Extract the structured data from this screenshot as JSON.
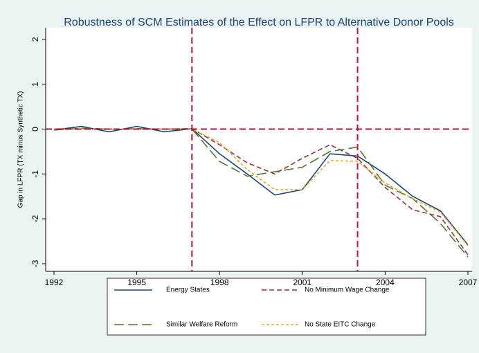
{
  "chart_data": {
    "type": "line",
    "title": "Robustness of SCM Estimates of the Effect on LFPR to Alternative Donor Pools",
    "y_label": "Gap in LFPR (TX minus Synthetic TX)",
    "x": [
      1992,
      1993,
      1994,
      1995,
      1996,
      1997,
      1998,
      1999,
      2000,
      2001,
      2002,
      2003,
      2004,
      2005,
      2006,
      2007
    ],
    "series": [
      {
        "name": "Energy States",
        "color": "#1a476f",
        "dash": "solid",
        "values": [
          -0.02,
          0.06,
          -0.06,
          0.06,
          -0.06,
          0.01,
          -0.55,
          -1.0,
          -1.47,
          -1.35,
          -0.55,
          -0.6,
          -1.0,
          -1.5,
          -1.82,
          -2.58
        ]
      },
      {
        "name": "No Minimum Wage Change",
        "color": "#90353b",
        "dash": "dashed",
        "values": [
          0,
          0,
          0,
          0,
          0,
          0.01,
          -0.35,
          -0.75,
          -1.0,
          -0.65,
          -0.35,
          -0.65,
          -1.3,
          -1.8,
          -1.95,
          -2.8
        ]
      },
      {
        "name": "Similar Welfare Reform",
        "color": "#55752f",
        "dash": "longdash",
        "values": [
          -0.02,
          0.02,
          0,
          0.01,
          0,
          0,
          -0.72,
          -1.05,
          -0.95,
          -0.85,
          -0.5,
          -0.4,
          -1.25,
          -1.55,
          -2.1,
          -2.85
        ]
      },
      {
        "name": "No State EITC Change",
        "color": "#e8a530",
        "dash": "shortdash",
        "values": [
          0,
          0,
          0,
          0,
          0,
          0,
          -0.3,
          -0.9,
          -1.35,
          -1.35,
          -0.7,
          -0.72,
          -1.2,
          -1.55,
          -1.85,
          -2.6
        ]
      }
    ],
    "xlim": [
      1991.7,
      2007.15
    ],
    "xticks": [
      1992,
      1995,
      1998,
      2001,
      2004,
      2007
    ],
    "ylim": [
      -3.17,
      2.26
    ],
    "yticks": [
      -3,
      -2,
      -1,
      0,
      1,
      2
    ],
    "xlines": [
      1997,
      2003
    ],
    "ylines": [
      0
    ],
    "refline_color": "#b0153a",
    "legend": "bottom"
  }
}
